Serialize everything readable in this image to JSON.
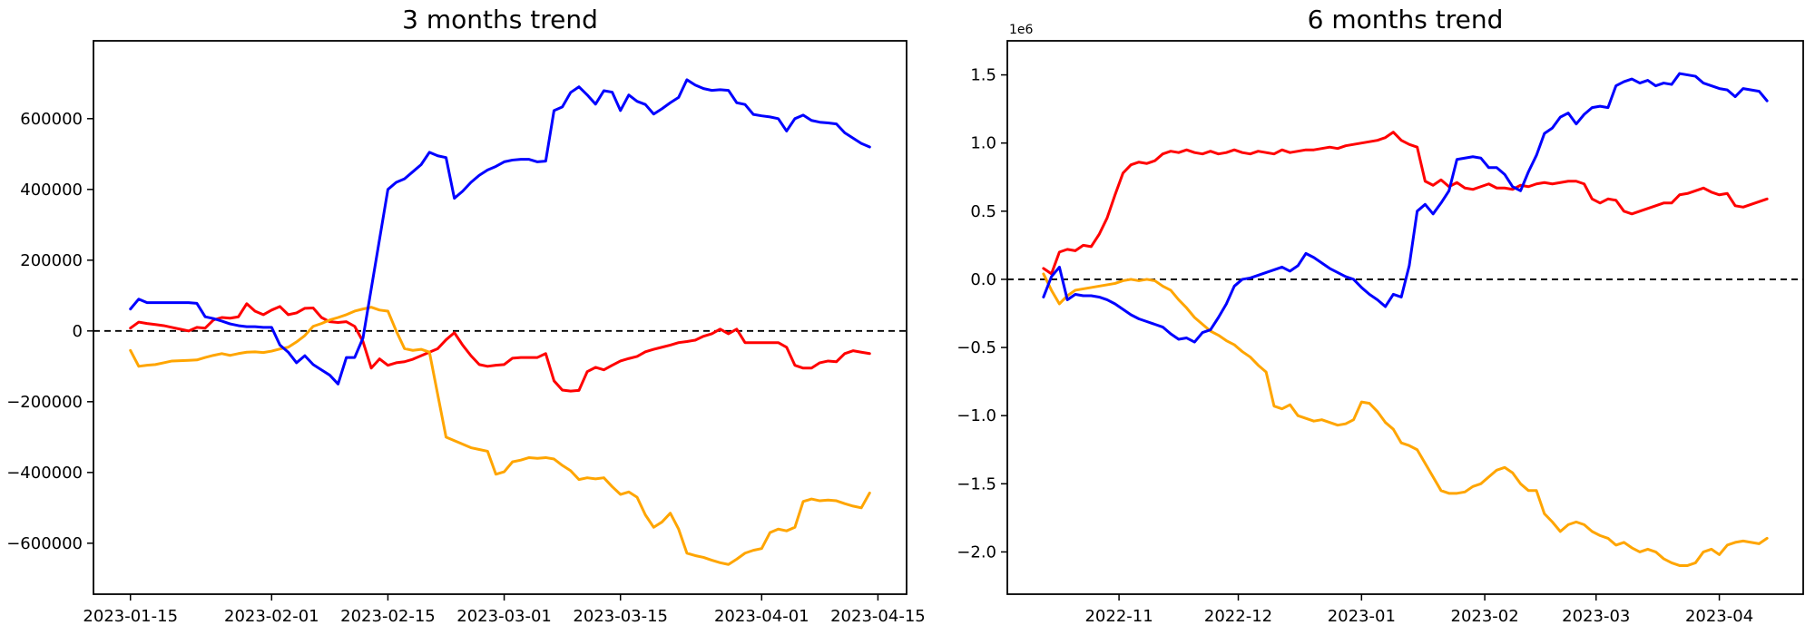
{
  "figure": {
    "background": "#ffffff"
  },
  "chart_data": [
    {
      "type": "line",
      "title": "3 months trend",
      "x_unit": "days since 2023-01-15",
      "x_step": 1,
      "xlim": [
        -4.45,
        93.45
      ],
      "ylim": [
        -744000,
        820000
      ],
      "zero_line": true,
      "grid": false,
      "legend": "none",
      "x_axis": {
        "tick_positions": [
          0,
          17,
          31,
          45,
          59,
          76,
          90
        ],
        "tick_labels": [
          "2023-01-15",
          "2023-02-01",
          "2023-02-15",
          "2023-03-01",
          "2023-03-15",
          "2023-04-01",
          "2023-04-15"
        ]
      },
      "y_axis": {
        "tick_values": [
          600000,
          400000,
          200000,
          0,
          -200000,
          -400000,
          -600000
        ],
        "tick_labels": [
          "600000",
          "400000",
          "200000",
          "0",
          "−200000",
          "−400000",
          "−600000"
        ],
        "offset_text": ""
      },
      "series": [
        {
          "name": "red",
          "color": "#ff0000",
          "values": [
            8000,
            25000,
            21000,
            18000,
            15000,
            10000,
            5000,
            0,
            10000,
            8000,
            31000,
            38000,
            36000,
            40000,
            77000,
            56000,
            46000,
            59000,
            69000,
            46000,
            51000,
            64000,
            65000,
            38000,
            26000,
            24000,
            26000,
            13000,
            -30000,
            -105000,
            -79000,
            -97000,
            -90000,
            -87000,
            -80000,
            -70000,
            -60000,
            -50000,
            -25000,
            -5000,
            -40000,
            -70000,
            -95000,
            -100000,
            -97000,
            -95000,
            -77000,
            -75000,
            -75000,
            -75000,
            -64000,
            -141000,
            -167000,
            -170000,
            -168000,
            -115000,
            -103000,
            -110000,
            -97000,
            -85000,
            -78000,
            -72000,
            -59000,
            -52000,
            -46000,
            -40000,
            -33000,
            -30000,
            -26000,
            -15000,
            -8000,
            5000,
            -8000,
            5000,
            -33000,
            -33000,
            -33000,
            -33000,
            -33000,
            -46000,
            -97000,
            -105000,
            -105000,
            -90000,
            -85000,
            -87000,
            -64000,
            -56000,
            -60000,
            -64000
          ]
        },
        {
          "name": "orange",
          "color": "#ffa500",
          "values": [
            -55000,
            -100000,
            -97000,
            -95000,
            -90000,
            -85000,
            -84000,
            -83000,
            -82000,
            -75000,
            -69000,
            -64000,
            -69000,
            -64000,
            -60000,
            -59000,
            -61000,
            -57000,
            -51000,
            -46000,
            -31000,
            -13000,
            13000,
            21000,
            31000,
            38000,
            46000,
            56000,
            62000,
            67000,
            59000,
            56000,
            0,
            -50000,
            -55000,
            -52000,
            -60000,
            -180000,
            -300000,
            -310000,
            -320000,
            -330000,
            -335000,
            -340000,
            -405000,
            -398000,
            -370000,
            -365000,
            -358000,
            -360000,
            -358000,
            -362000,
            -380000,
            -395000,
            -420000,
            -415000,
            -418000,
            -415000,
            -440000,
            -462000,
            -455000,
            -470000,
            -520000,
            -555000,
            -540000,
            -515000,
            -560000,
            -628000,
            -635000,
            -640000,
            -648000,
            -655000,
            -660000,
            -645000,
            -628000,
            -620000,
            -615000,
            -570000,
            -560000,
            -565000,
            -555000,
            -482000,
            -475000,
            -480000,
            -478000,
            -480000,
            -488000,
            -495000,
            -500000,
            -458000
          ]
        },
        {
          "name": "blue",
          "color": "#0000ff",
          "values": [
            62000,
            90000,
            80000,
            80000,
            80000,
            80000,
            80000,
            80000,
            78000,
            40000,
            35000,
            28000,
            20000,
            15000,
            12000,
            12000,
            10000,
            10000,
            -40000,
            -60000,
            -90000,
            -70000,
            -95000,
            -110000,
            -125000,
            -150000,
            -75000,
            -75000,
            -20000,
            120000,
            260000,
            400000,
            420000,
            430000,
            450000,
            470000,
            505000,
            495000,
            490000,
            375000,
            395000,
            420000,
            440000,
            455000,
            465000,
            478000,
            483000,
            485000,
            485000,
            478000,
            480000,
            623000,
            633000,
            674000,
            690000,
            667000,
            641000,
            679000,
            675000,
            623000,
            667000,
            649000,
            640000,
            613000,
            628000,
            645000,
            660000,
            710000,
            695000,
            685000,
            680000,
            682000,
            680000,
            645000,
            640000,
            612000,
            608000,
            605000,
            600000,
            565000,
            600000,
            610000,
            595000,
            590000,
            588000,
            585000,
            560000,
            545000,
            530000,
            520000
          ]
        }
      ]
    },
    {
      "type": "line",
      "title": "6 months trend",
      "x_unit": "days since 2022-10-13",
      "x_step": 2,
      "xlim": [
        -9.1,
        191.1
      ],
      "ylim": [
        -2.31,
        1.75
      ],
      "zero_line": true,
      "grid": false,
      "legend": "none",
      "x_axis": {
        "tick_positions": [
          19,
          49,
          80,
          111,
          139,
          170
        ],
        "tick_labels": [
          "2022-11",
          "2022-12",
          "2023-01",
          "2023-02",
          "2023-03",
          "2023-04"
        ]
      },
      "y_axis": {
        "tick_values": [
          1.5,
          1.0,
          0.5,
          0.0,
          -0.5,
          -1.0,
          -1.5,
          -2.0
        ],
        "tick_labels": [
          "1.5",
          "1.0",
          "0.5",
          "0.0",
          "−0.5",
          "−1.0",
          "−1.5",
          "−2.0"
        ],
        "offset_text": "1e6"
      },
      "series": [
        {
          "name": "red",
          "color": "#ff0000",
          "values": [
            0.08,
            0.04,
            0.2,
            0.22,
            0.21,
            0.25,
            0.24,
            0.33,
            0.45,
            0.62,
            0.78,
            0.84,
            0.86,
            0.85,
            0.87,
            0.92,
            0.94,
            0.93,
            0.95,
            0.93,
            0.92,
            0.94,
            0.92,
            0.93,
            0.95,
            0.93,
            0.92,
            0.94,
            0.93,
            0.92,
            0.95,
            0.93,
            0.94,
            0.95,
            0.95,
            0.96,
            0.97,
            0.96,
            0.98,
            0.99,
            1.0,
            1.01,
            1.02,
            1.04,
            1.08,
            1.02,
            0.99,
            0.97,
            0.72,
            0.69,
            0.73,
            0.68,
            0.71,
            0.67,
            0.66,
            0.68,
            0.7,
            0.67,
            0.67,
            0.66,
            0.69,
            0.68,
            0.7,
            0.71,
            0.7,
            0.71,
            0.72,
            0.72,
            0.7,
            0.59,
            0.56,
            0.59,
            0.58,
            0.5,
            0.48,
            0.5,
            0.52,
            0.54,
            0.56,
            0.56,
            0.62,
            0.63,
            0.65,
            0.67,
            0.64,
            0.62,
            0.63,
            0.54,
            0.53,
            0.55,
            0.57,
            0.59
          ]
        },
        {
          "name": "orange",
          "color": "#ffa500",
          "values": [
            0.04,
            -0.08,
            -0.18,
            -0.12,
            -0.08,
            -0.07,
            -0.06,
            -0.05,
            -0.04,
            -0.03,
            -0.01,
            0.0,
            -0.01,
            0.0,
            -0.01,
            -0.05,
            -0.08,
            -0.15,
            -0.21,
            -0.28,
            -0.33,
            -0.38,
            -0.41,
            -0.45,
            -0.48,
            -0.53,
            -0.57,
            -0.63,
            -0.68,
            -0.93,
            -0.95,
            -0.92,
            -1.0,
            -1.02,
            -1.04,
            -1.03,
            -1.05,
            -1.07,
            -1.06,
            -1.03,
            -0.9,
            -0.91,
            -0.97,
            -1.05,
            -1.1,
            -1.2,
            -1.22,
            -1.25,
            -1.35,
            -1.45,
            -1.55,
            -1.57,
            -1.57,
            -1.56,
            -1.52,
            -1.5,
            -1.45,
            -1.4,
            -1.38,
            -1.42,
            -1.5,
            -1.55,
            -1.55,
            -1.72,
            -1.78,
            -1.85,
            -1.8,
            -1.78,
            -1.8,
            -1.85,
            -1.88,
            -1.9,
            -1.95,
            -1.93,
            -1.97,
            -2.0,
            -1.98,
            -2.0,
            -2.05,
            -2.08,
            -2.1,
            -2.1,
            -2.08,
            -2.0,
            -1.98,
            -2.02,
            -1.95,
            -1.93,
            -1.92,
            -1.93,
            -1.94,
            -1.9
          ]
        },
        {
          "name": "blue",
          "color": "#0000ff",
          "values": [
            -0.13,
            0.02,
            0.09,
            -0.15,
            -0.11,
            -0.12,
            -0.12,
            -0.13,
            -0.15,
            -0.18,
            -0.22,
            -0.26,
            -0.29,
            -0.31,
            -0.33,
            -0.35,
            -0.4,
            -0.44,
            -0.43,
            -0.46,
            -0.39,
            -0.37,
            -0.28,
            -0.18,
            -0.05,
            0.0,
            0.01,
            0.03,
            0.05,
            0.07,
            0.09,
            0.06,
            0.1,
            0.19,
            0.16,
            0.12,
            0.08,
            0.05,
            0.02,
            0.0,
            -0.06,
            -0.11,
            -0.15,
            -0.2,
            -0.11,
            -0.13,
            0.1,
            0.5,
            0.55,
            0.48,
            0.56,
            0.65,
            0.88,
            0.89,
            0.9,
            0.89,
            0.82,
            0.82,
            0.77,
            0.68,
            0.65,
            0.79,
            0.91,
            1.07,
            1.11,
            1.19,
            1.22,
            1.14,
            1.21,
            1.26,
            1.27,
            1.26,
            1.42,
            1.45,
            1.47,
            1.44,
            1.46,
            1.42,
            1.44,
            1.43,
            1.51,
            1.5,
            1.49,
            1.44,
            1.42,
            1.4,
            1.39,
            1.34,
            1.4,
            1.39,
            1.38,
            1.31
          ]
        }
      ]
    }
  ]
}
